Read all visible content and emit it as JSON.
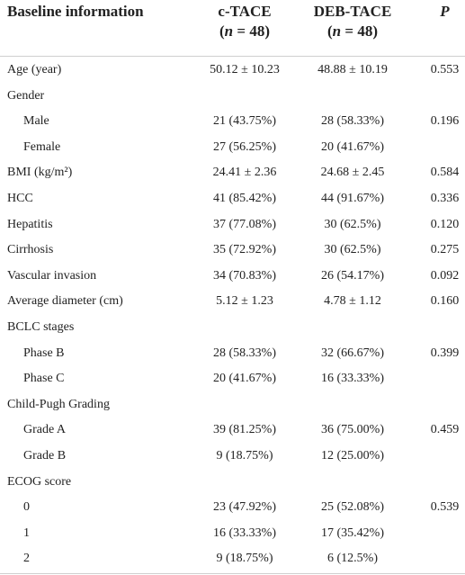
{
  "header": {
    "label": "Baseline information",
    "columns": [
      {
        "title": "c-TACE",
        "n_open": "(",
        "n_symbol": "n",
        "n_close": " = 48)"
      },
      {
        "title": "DEB-TACE",
        "n_open": "(",
        "n_symbol": "n",
        "n_close": " = 48)"
      }
    ],
    "p": "P"
  },
  "rows": [
    {
      "label": "Age (year)",
      "c_tace": "50.12 ± 10.23",
      "deb_tace": "48.88 ± 10.19",
      "p": "0.553"
    },
    {
      "label": "Gender",
      "subrows": [
        {
          "label": "Male",
          "c_tace": "21 (43.75%)",
          "deb_tace": "28 (58.33%)",
          "p": "0.196"
        },
        {
          "label": "Female",
          "c_tace": "27 (56.25%)",
          "deb_tace": "20 (41.67%)"
        }
      ]
    },
    {
      "label": "BMI (kg/m²)",
      "c_tace": "24.41 ± 2.36",
      "deb_tace": "24.68 ± 2.45",
      "p": "0.584"
    },
    {
      "label": "HCC",
      "c_tace": "41 (85.42%)",
      "deb_tace": "44 (91.67%)",
      "p": "0.336"
    },
    {
      "label": "Hepatitis",
      "c_tace": "37 (77.08%)",
      "deb_tace": "30 (62.5%)",
      "p": "0.120"
    },
    {
      "label": "Cirrhosis",
      "c_tace": "35 (72.92%)",
      "deb_tace": "30 (62.5%)",
      "p": "0.275"
    },
    {
      "label": "Vascular invasion",
      "c_tace": "34 (70.83%)",
      "deb_tace": "26 (54.17%)",
      "p": "0.092"
    },
    {
      "label": "Average diameter (cm)",
      "c_tace": "5.12 ± 1.23",
      "deb_tace": "4.78 ± 1.12",
      "p": "0.160"
    },
    {
      "label": "BCLC stages",
      "subrows": [
        {
          "label": "Phase B",
          "c_tace": "28 (58.33%)",
          "deb_tace": "32 (66.67%)",
          "p": "0.399"
        },
        {
          "label": "Phase C",
          "c_tace": "20 (41.67%)",
          "deb_tace": "16 (33.33%)"
        }
      ]
    },
    {
      "label": "Child-Pugh Grading",
      "subrows": [
        {
          "label": "Grade A",
          "c_tace": "39 (81.25%)",
          "deb_tace": "36 (75.00%)",
          "p": "0.459"
        },
        {
          "label": "Grade B",
          "c_tace": "9 (18.75%)",
          "deb_tace": "12 (25.00%)"
        }
      ]
    },
    {
      "label": "ECOG score",
      "subrows": [
        {
          "label": "0",
          "c_tace": "23 (47.92%)",
          "deb_tace": "25 (52.08%)",
          "p": "0.539"
        },
        {
          "label": "1",
          "c_tace": "16 (33.33%)",
          "deb_tace": "17 (35.42%)"
        },
        {
          "label": "2",
          "c_tace": "9 (18.75%)",
          "deb_tace": "6 (12.5%)"
        }
      ]
    }
  ]
}
